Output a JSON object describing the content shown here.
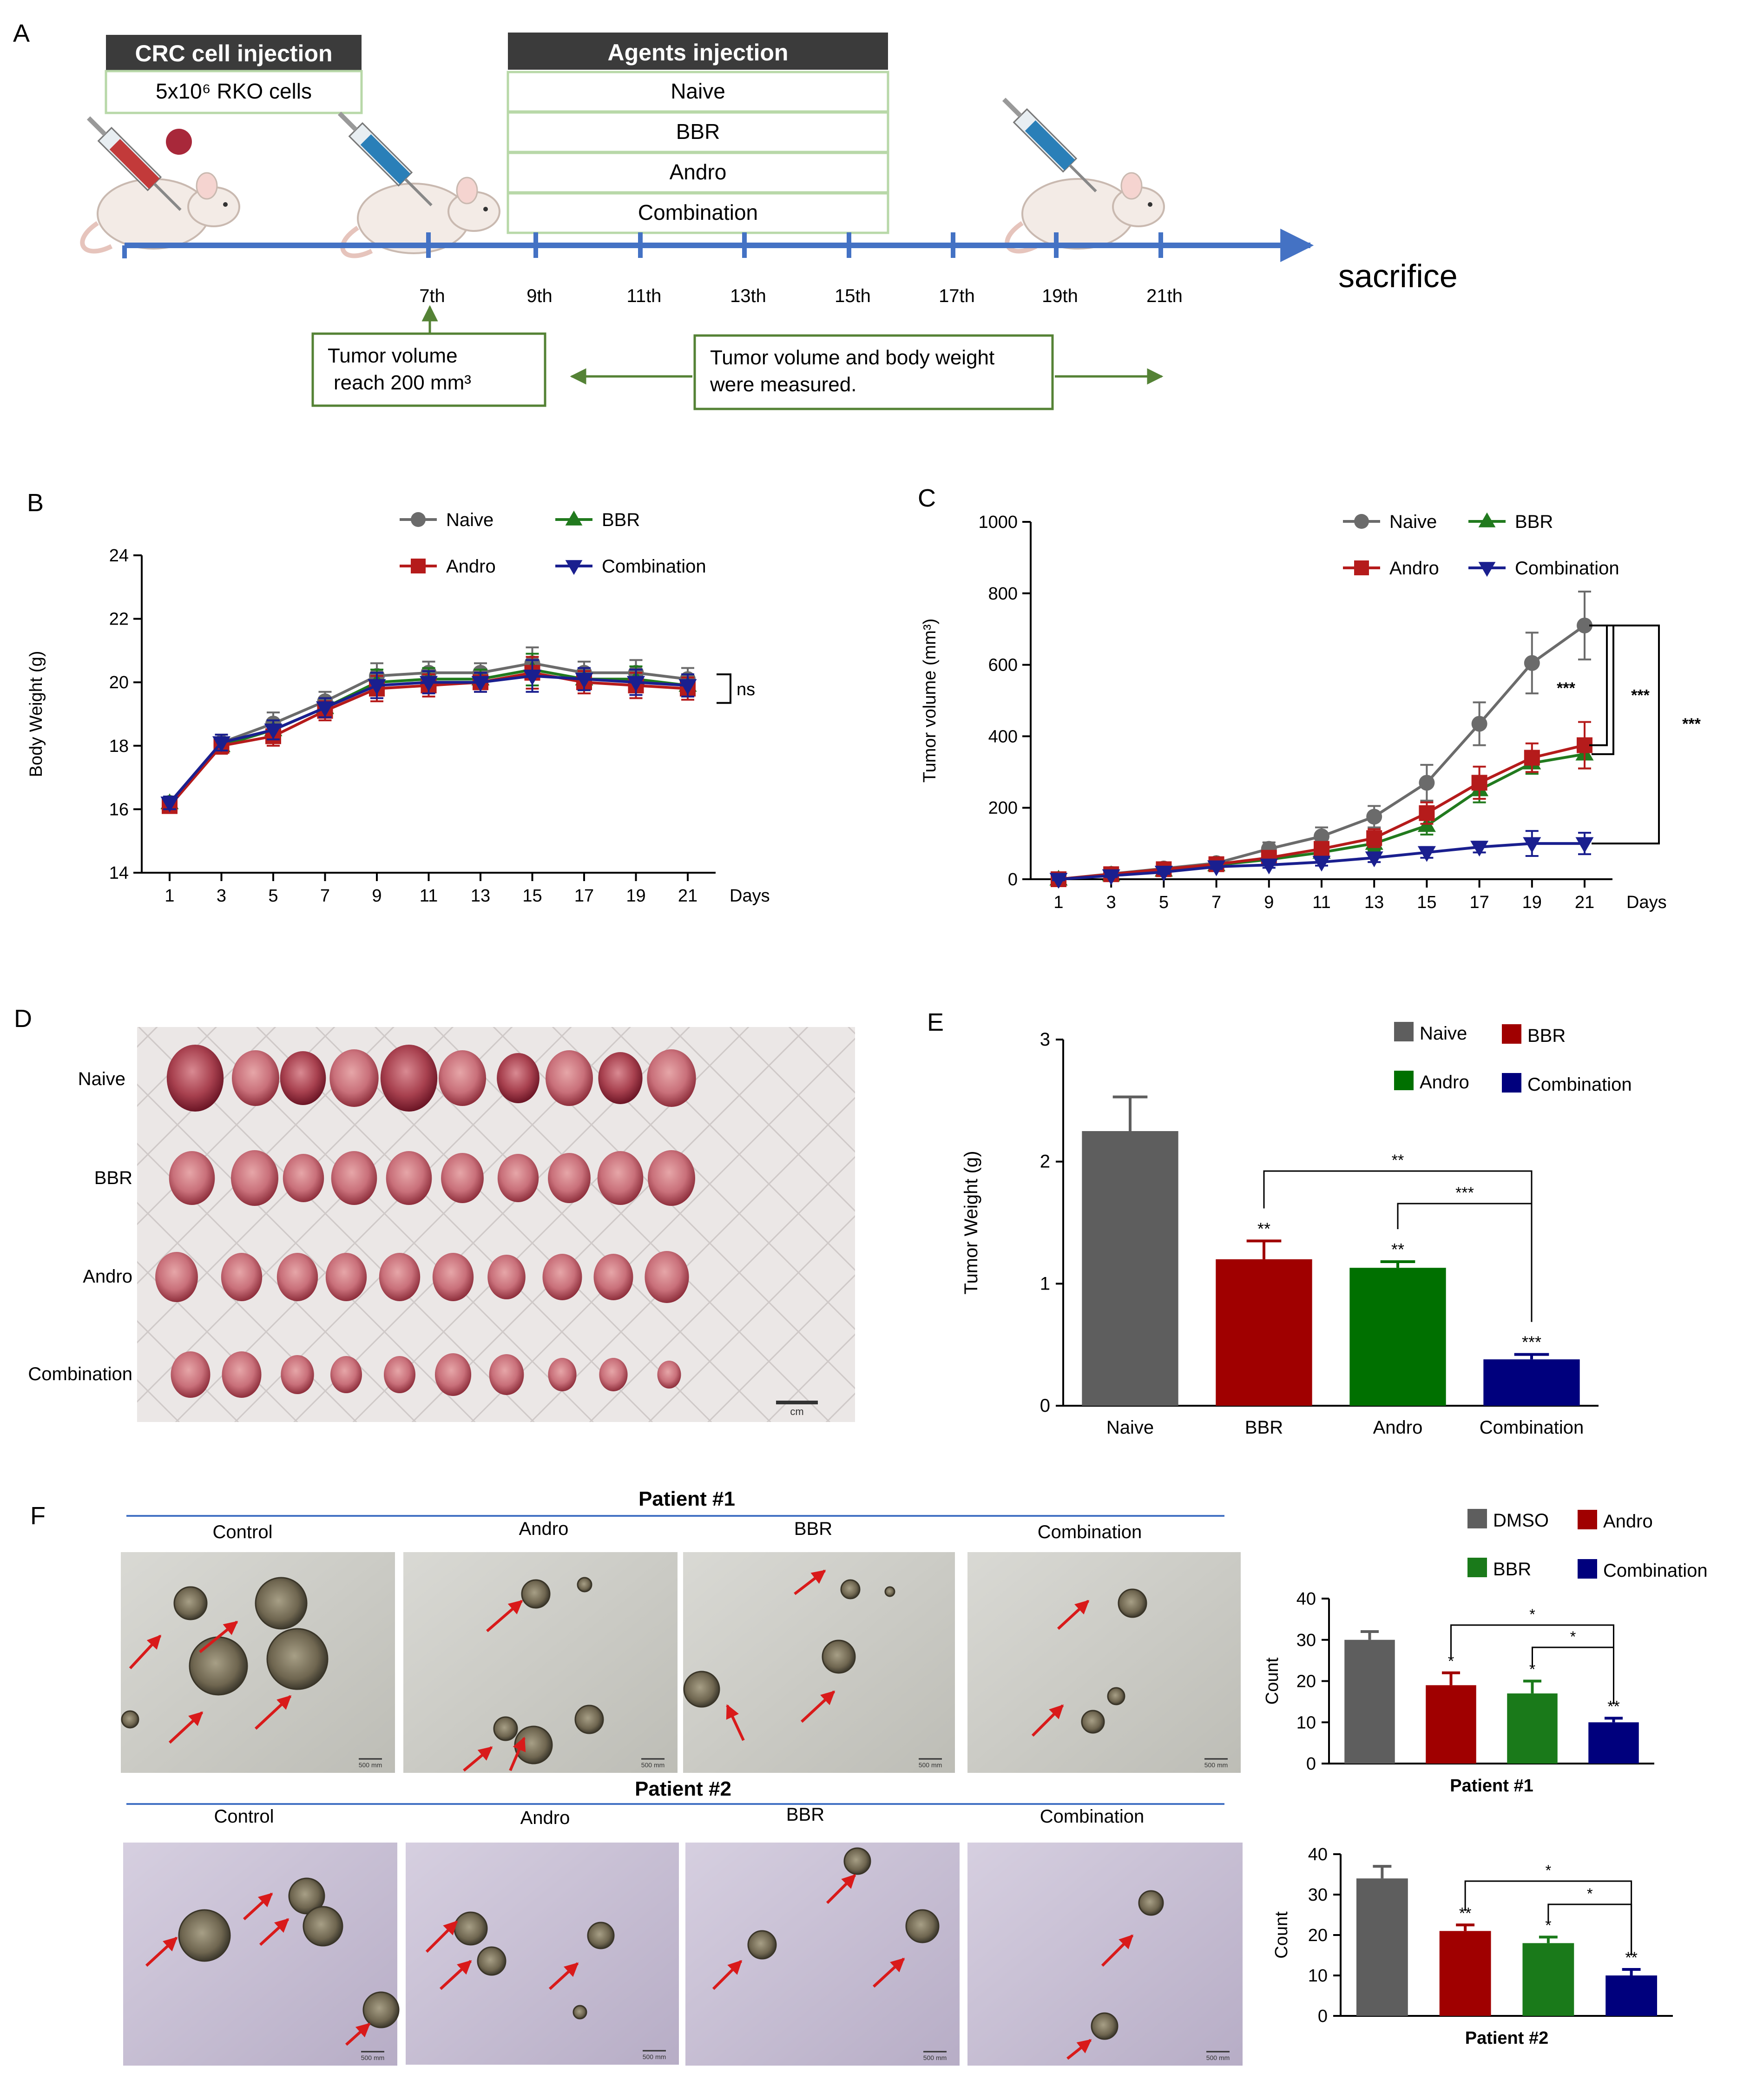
{
  "colors": {
    "naive": "#6b6b6b",
    "bbr": "#217a1e",
    "andro": "#b51b1b",
    "combination": "#1a1f8f",
    "dmso": "#5e5e5e",
    "organoid_bbr": "#1a7a1a",
    "organoid_andro": "#a00000",
    "organoid_combination": "#00007d",
    "bar_naive": "#5e5e5e",
    "bar_bbr": "#a00000",
    "bar_andro": "#007000",
    "bar_combination": "#00007d",
    "timeline": "#4472c4",
    "green_box": "#548235",
    "dark_header": "#3b3b3b",
    "arrow_red": "#d91a1a"
  },
  "panels": {
    "A": {
      "label": "A",
      "crc_header": "CRC cell injection",
      "crc_cells": "5x10⁶ RKO cells",
      "agents_header": "Agents injection",
      "agents": [
        "Naive",
        "BBR",
        "Andro",
        "Combination"
      ],
      "days": [
        "7th",
        "9th",
        "11th",
        "13th",
        "15th",
        "17th",
        "19th",
        "21th"
      ],
      "sacrifice": "sacrifice",
      "note1_line1": "Tumor volume",
      "note1_line2": "reach 200 mm³",
      "note2_line1": "Tumor volume and body weight",
      "note2_line2": "were measured."
    },
    "D": {
      "label": "D",
      "rows": [
        "Naive",
        "BBR",
        "Andro",
        "Combination"
      ],
      "scale": "cm"
    },
    "F": {
      "label": "F",
      "patient1_title": "Patient #1",
      "patient2_title": "Patient #2",
      "columns1": [
        "Control",
        "Andro",
        "BBR",
        "Combination"
      ],
      "columns2": [
        "Control",
        "Andro",
        "BBR",
        "Combination"
      ],
      "scalebar": "500 mm"
    }
  },
  "chart_data": [
    {
      "id": "B",
      "panel_label": "B",
      "type": "line",
      "title": "",
      "xlabel": "Days",
      "ylabel": "Body Weight (g)",
      "x": [
        1,
        3,
        5,
        7,
        9,
        11,
        13,
        15,
        17,
        19,
        21
      ],
      "ylim": [
        14,
        24
      ],
      "yticks": [
        14,
        16,
        18,
        20,
        22,
        24
      ],
      "series": [
        {
          "name": "Naive",
          "color_key": "naive",
          "marker": "circle",
          "values": [
            16.2,
            18.1,
            18.7,
            19.4,
            20.2,
            20.3,
            20.3,
            20.6,
            20.3,
            20.3,
            20.1
          ],
          "err": [
            0.2,
            0.25,
            0.35,
            0.3,
            0.4,
            0.35,
            0.3,
            0.5,
            0.35,
            0.4,
            0.35
          ]
        },
        {
          "name": "BBR",
          "color_key": "bbr",
          "marker": "triangle-up",
          "values": [
            16.2,
            18.0,
            18.5,
            19.2,
            20.0,
            20.1,
            20.1,
            20.4,
            20.1,
            20.1,
            19.9
          ],
          "err": [
            0.2,
            0.25,
            0.3,
            0.3,
            0.4,
            0.35,
            0.3,
            0.5,
            0.35,
            0.4,
            0.35
          ]
        },
        {
          "name": "Andro",
          "color_key": "andro",
          "marker": "square",
          "values": [
            16.1,
            18.0,
            18.3,
            19.1,
            19.8,
            19.9,
            20.0,
            20.3,
            20.0,
            19.9,
            19.8
          ],
          "err": [
            0.2,
            0.25,
            0.3,
            0.3,
            0.4,
            0.35,
            0.3,
            0.5,
            0.35,
            0.4,
            0.35
          ]
        },
        {
          "name": "Combination",
          "color_key": "combination",
          "marker": "triangle-down",
          "values": [
            16.2,
            18.1,
            18.5,
            19.2,
            19.9,
            20.0,
            20.0,
            20.2,
            20.1,
            20.0,
            19.9
          ],
          "err": [
            0.2,
            0.25,
            0.3,
            0.3,
            0.4,
            0.35,
            0.3,
            0.5,
            0.35,
            0.4,
            0.35
          ]
        }
      ],
      "legend": [
        "Naive",
        "BBR",
        "Andro",
        "Combination"
      ],
      "annotation": "ns"
    },
    {
      "id": "C",
      "panel_label": "C",
      "type": "line",
      "title": "",
      "xlabel": "Days",
      "ylabel": "Tumor volume (mm³)",
      "x": [
        1,
        3,
        5,
        7,
        9,
        11,
        13,
        15,
        17,
        19,
        21
      ],
      "ylim": [
        0,
        1000
      ],
      "yticks": [
        0,
        200,
        400,
        600,
        800,
        1000
      ],
      "series": [
        {
          "name": "Naive",
          "color_key": "naive",
          "marker": "circle",
          "values": [
            0,
            15,
            30,
            45,
            85,
            120,
            175,
            270,
            435,
            605,
            710
          ],
          "err": [
            5,
            8,
            10,
            12,
            18,
            25,
            30,
            50,
            60,
            85,
            95
          ]
        },
        {
          "name": "BBR",
          "color_key": "bbr",
          "marker": "triangle-up",
          "values": [
            0,
            12,
            25,
            40,
            55,
            75,
            100,
            150,
            250,
            325,
            350
          ],
          "err": [
            4,
            6,
            8,
            10,
            12,
            15,
            20,
            25,
            35,
            30,
            40
          ]
        },
        {
          "name": "Andro",
          "color_key": "andro",
          "marker": "square",
          "values": [
            0,
            14,
            28,
            42,
            60,
            85,
            115,
            185,
            270,
            340,
            375
          ],
          "err": [
            4,
            6,
            8,
            10,
            12,
            18,
            25,
            30,
            45,
            40,
            65
          ]
        },
        {
          "name": "Combination",
          "color_key": "combination",
          "marker": "triangle-down",
          "values": [
            0,
            10,
            20,
            35,
            40,
            48,
            60,
            75,
            90,
            100,
            100
          ],
          "err": [
            3,
            4,
            5,
            6,
            8,
            10,
            12,
            15,
            15,
            35,
            30
          ]
        }
      ],
      "legend": [
        "Naive",
        "BBR",
        "Andro",
        "Combination"
      ],
      "annotations": [
        "***",
        "***",
        "***"
      ]
    },
    {
      "id": "E",
      "panel_label": "E",
      "type": "bar",
      "title": "",
      "xlabel": "",
      "ylabel": "Tumor Weight (g)",
      "categories": [
        "Naive",
        "BBR",
        "Andro",
        "Combination"
      ],
      "values": [
        2.25,
        1.2,
        1.13,
        0.38
      ],
      "err": [
        0.28,
        0.15,
        0.05,
        0.04
      ],
      "color_keys": [
        "bar_naive",
        "bar_bbr",
        "bar_andro",
        "bar_combination"
      ],
      "ylim": [
        0,
        3
      ],
      "yticks": [
        0,
        1,
        2,
        3
      ],
      "legend": [
        "Naive",
        "BBR",
        "Andro",
        "Combination"
      ],
      "sig_labels": [
        "",
        "**",
        "**",
        "***"
      ],
      "brackets": [
        {
          "from": "BBR",
          "to": "Combination",
          "label": "**"
        },
        {
          "from": "Andro",
          "to": "Combination",
          "label": "***"
        }
      ]
    },
    {
      "id": "F1",
      "type": "bar",
      "title": "",
      "xlabel": "Patient #1",
      "ylabel": "Count",
      "categories": [
        "DMSO",
        "Andro",
        "BBR",
        "Combination"
      ],
      "values": [
        30,
        19,
        17,
        10
      ],
      "err": [
        2,
        3,
        3,
        1
      ],
      "color_keys": [
        "dmso",
        "organoid_andro",
        "organoid_bbr",
        "organoid_combination"
      ],
      "ylim": [
        0,
        40
      ],
      "yticks": [
        0,
        10,
        20,
        30,
        40
      ],
      "legend": [
        "DMSO",
        "Andro",
        "BBR",
        "Combination"
      ],
      "sig_labels": [
        "",
        "*",
        "*",
        "**"
      ],
      "brackets": [
        {
          "from": "Andro",
          "to": "Combination",
          "label": "*"
        },
        {
          "from": "BBR",
          "to": "Combination",
          "label": "*"
        }
      ]
    },
    {
      "id": "F2",
      "type": "bar",
      "title": "",
      "xlabel": "Patient #2",
      "ylabel": "Count",
      "categories": [
        "DMSO",
        "Andro",
        "BBR",
        "Combination"
      ],
      "values": [
        34,
        21,
        18,
        10
      ],
      "err": [
        3,
        1.5,
        1.5,
        1.5
      ],
      "color_keys": [
        "dmso",
        "organoid_andro",
        "organoid_bbr",
        "organoid_combination"
      ],
      "ylim": [
        0,
        40
      ],
      "yticks": [
        0,
        10,
        20,
        30,
        40
      ],
      "sig_labels": [
        "",
        "**",
        "*",
        "**"
      ],
      "brackets": [
        {
          "from": "Andro",
          "to": "Combination",
          "label": "*"
        },
        {
          "from": "BBR",
          "to": "Combination",
          "label": "*"
        }
      ]
    }
  ]
}
